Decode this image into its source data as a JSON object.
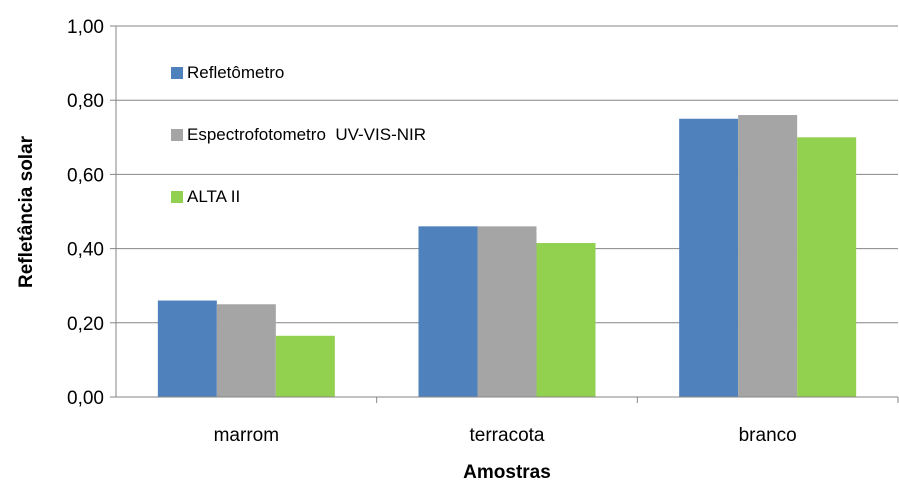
{
  "chart_data": {
    "type": "bar",
    "title": "",
    "xlabel": "Amostras",
    "ylabel": "Refletância solar",
    "categories": [
      "marrom",
      "terracota",
      "branco"
    ],
    "series": [
      {
        "name": "Refletômetro",
        "values": [
          0.26,
          0.46,
          0.75
        ],
        "color": "#4f81bd"
      },
      {
        "name": "Espectrofotometro  UV-VIS-NIR",
        "values": [
          0.25,
          0.46,
          0.76
        ],
        "color": "#a5a5a5"
      },
      {
        "name": "ALTA II",
        "values": [
          0.165,
          0.415,
          0.7
        ],
        "color": "#92d050"
      }
    ],
    "ylim": [
      0,
      1
    ],
    "yticks": [
      "0,00",
      "0,20",
      "0,40",
      "0,60",
      "0,80",
      "1,00"
    ],
    "grid": true,
    "legend_position": "top-left inside plot"
  }
}
